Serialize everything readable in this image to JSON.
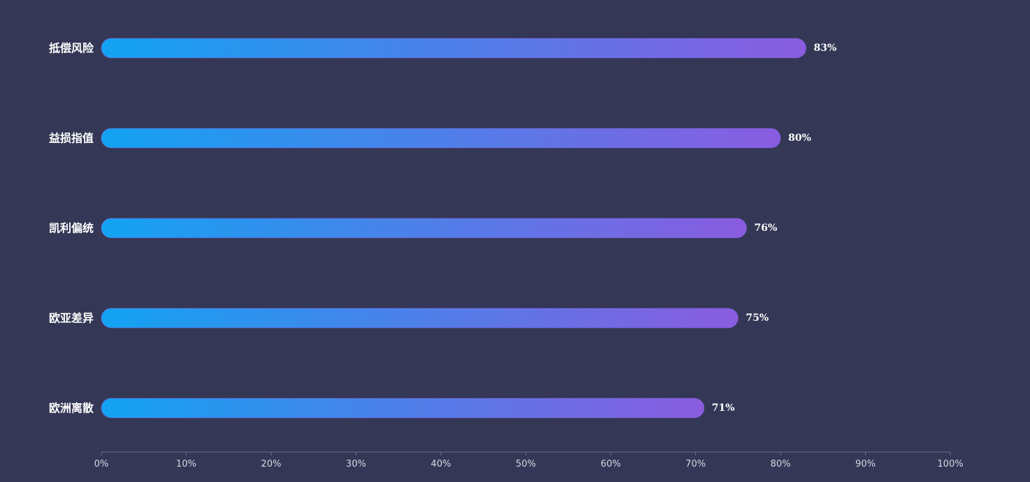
{
  "colors": {
    "background": "#343755",
    "bar_gradient_start": "#12a3f2",
    "bar_gradient_end": "#8a5ce0",
    "label": "#ffffff",
    "tick_label": "#d8d8e6",
    "axis": "#6b6e8e"
  },
  "chart_data": {
    "type": "bar",
    "orientation": "horizontal",
    "categories": [
      "抵偿风险",
      "益损指值",
      "凯利偏统",
      "欧亚差异",
      "欧洲离散"
    ],
    "values": [
      83,
      80,
      76,
      75,
      71
    ],
    "value_labels": [
      "83%",
      "80%",
      "76%",
      "75%",
      "71%"
    ],
    "xlim": [
      0,
      100
    ],
    "x_ticks": [
      0,
      10,
      20,
      30,
      40,
      50,
      60,
      70,
      80,
      90,
      100
    ],
    "x_tick_labels": [
      "0%",
      "10%",
      "20%",
      "30%",
      "40%",
      "50%",
      "60%",
      "70%",
      "80%",
      "90%",
      "100%"
    ],
    "grid": false,
    "legend": "none"
  }
}
